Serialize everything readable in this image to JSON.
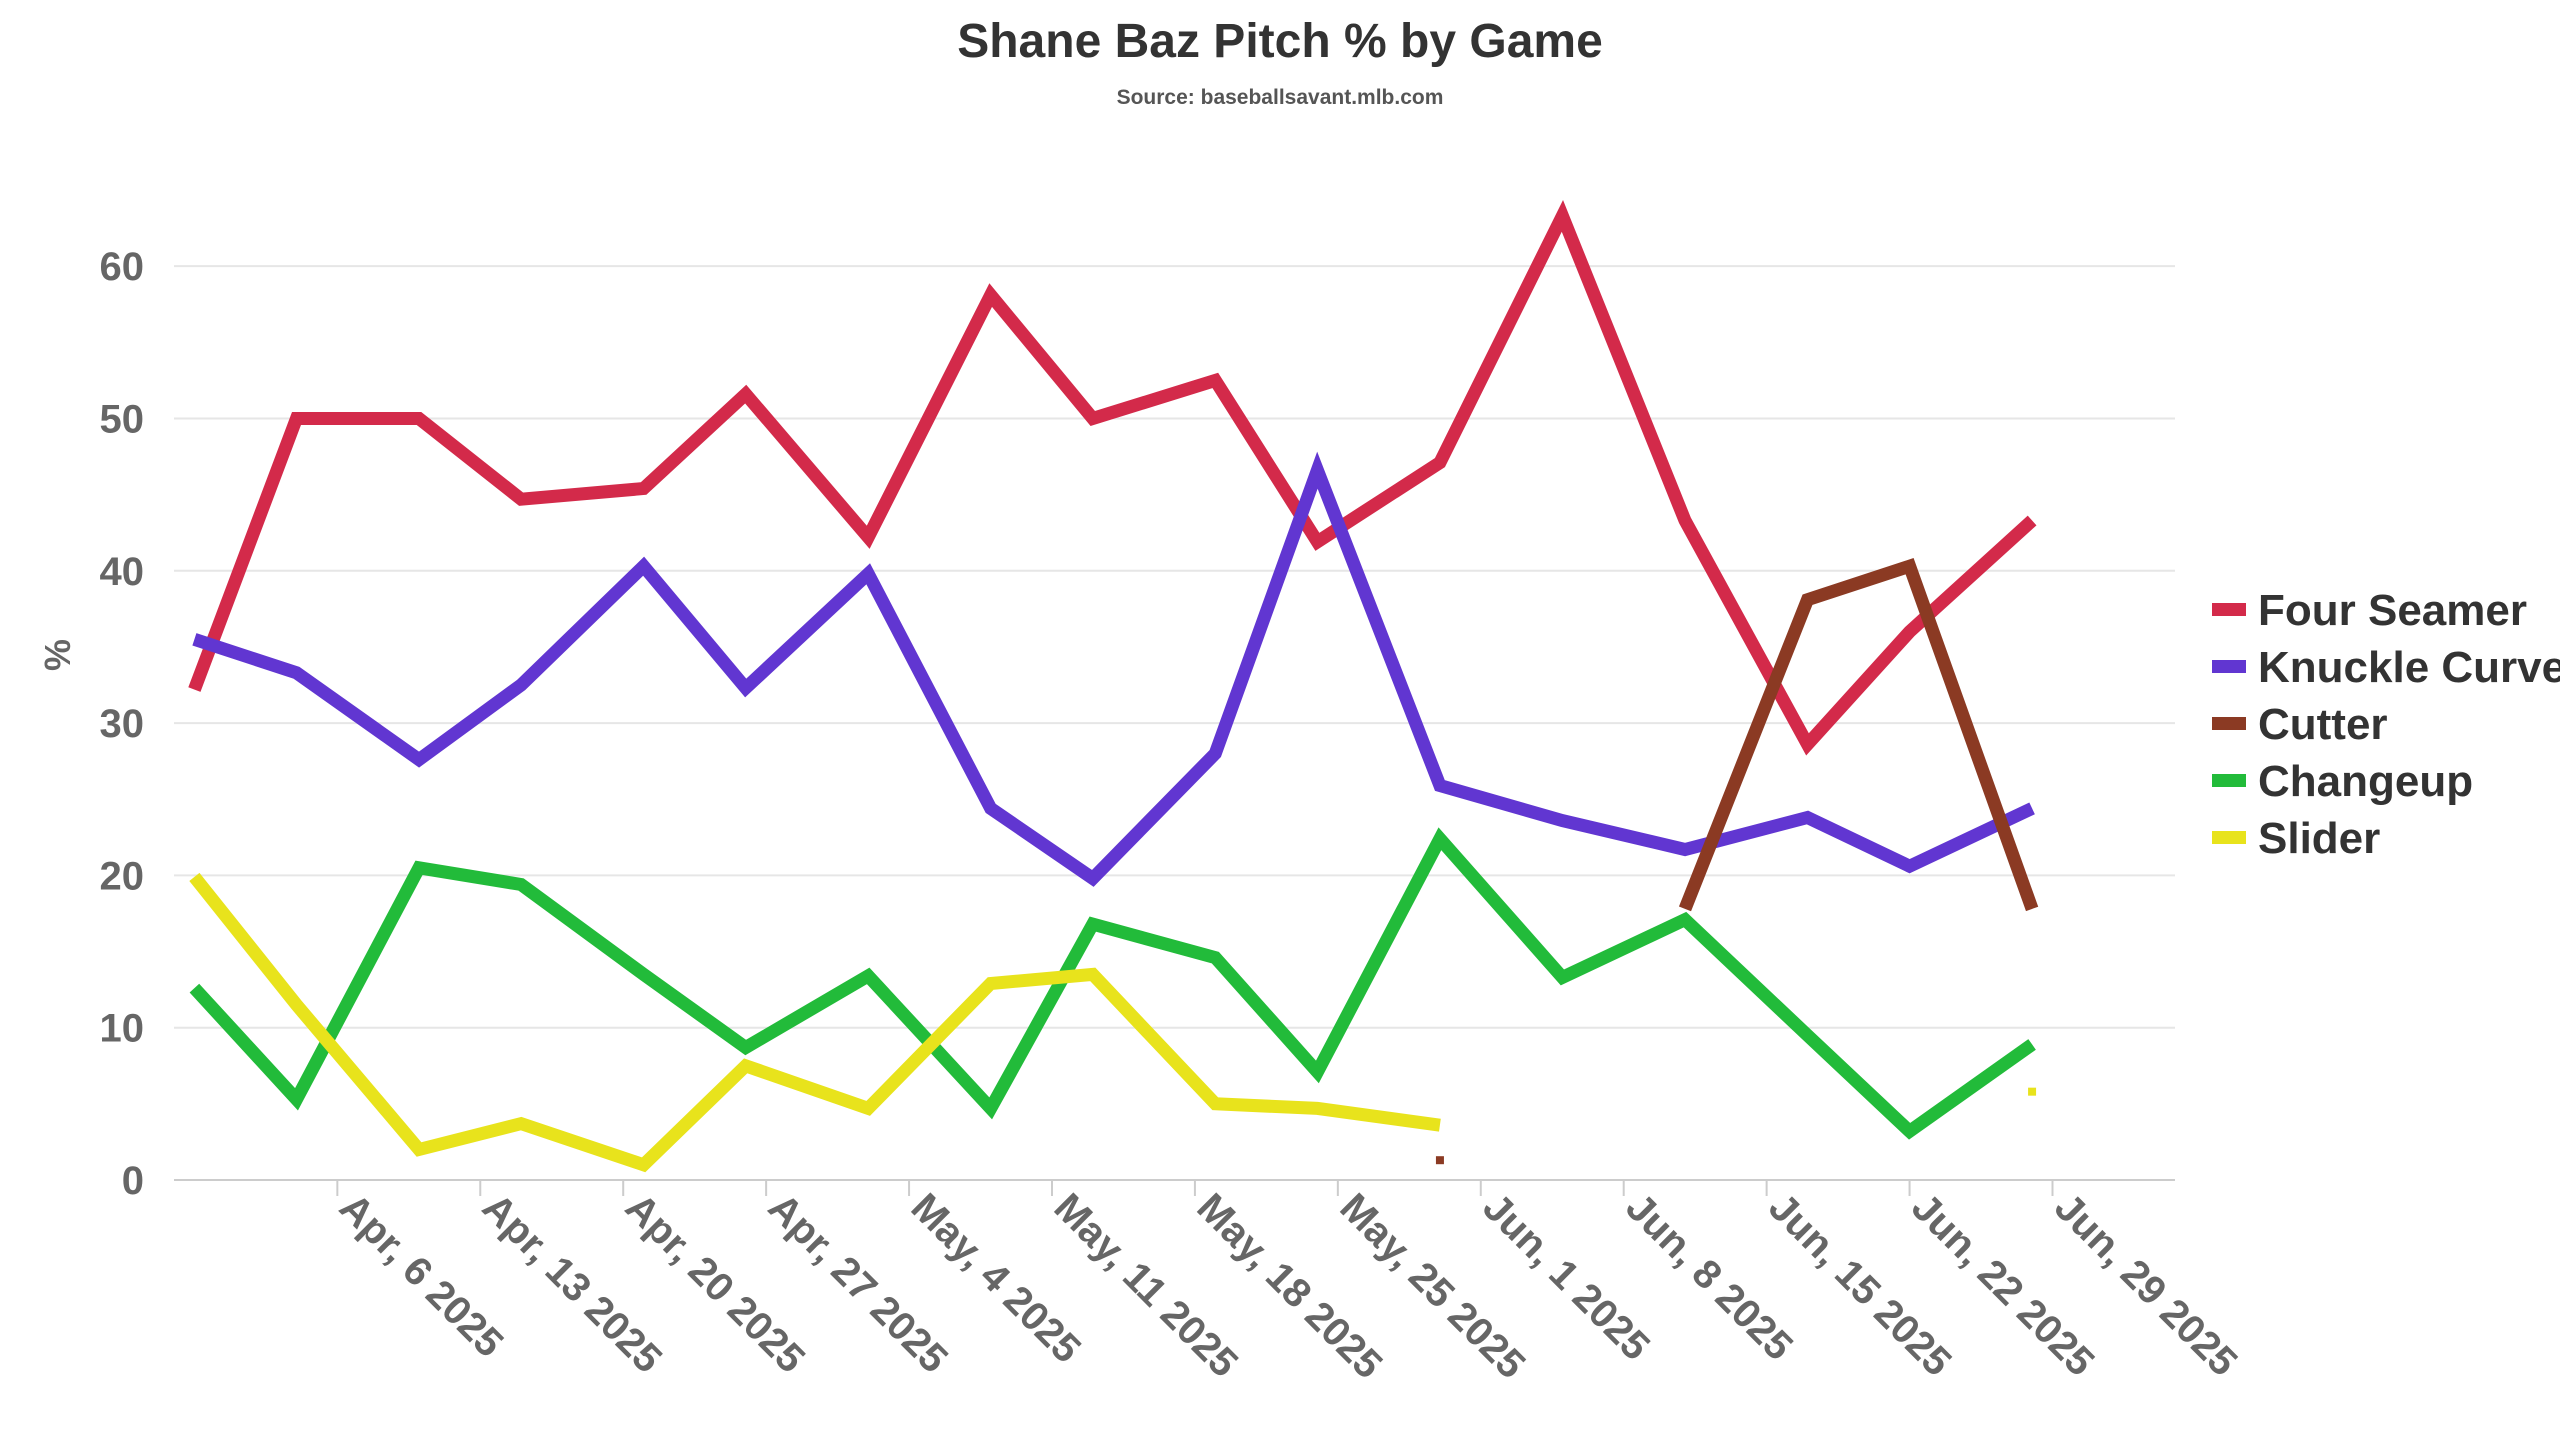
{
  "chart_data": {
    "type": "line",
    "title": "Shane Baz Pitch % by Game",
    "subtitle": "Source: baseballsavant.mlb.com",
    "ylabel": "%",
    "xlabel": "",
    "ylim": [
      0,
      65
    ],
    "yticks": [
      0,
      10,
      20,
      30,
      40,
      50,
      60
    ],
    "grid": true,
    "legend_position": "right",
    "x_tick_labels": [
      "Apr, 6 2025",
      "Apr, 13 2025",
      "Apr, 20 2025",
      "Apr, 27 2025",
      "May, 4 2025",
      "May, 11 2025",
      "May, 18 2025",
      "May, 25 2025",
      "Jun, 1 2025",
      "Jun, 8 2025",
      "Jun, 15 2025",
      "Jun, 22 2025",
      "Jun, 29 2025"
    ],
    "x_tick_dates": [
      "2025-04-06",
      "2025-04-13",
      "2025-04-20",
      "2025-04-27",
      "2025-05-04",
      "2025-05-11",
      "2025-05-18",
      "2025-05-25",
      "2025-06-01",
      "2025-06-08",
      "2025-06-15",
      "2025-06-22",
      "2025-06-29"
    ],
    "x_range": [
      "2025-03-29",
      "2025-07-05"
    ],
    "x": [
      "2025-03-30",
      "2025-04-04",
      "2025-04-10",
      "2025-04-15",
      "2025-04-21",
      "2025-04-26",
      "2025-05-02",
      "2025-05-08",
      "2025-05-13",
      "2025-05-19",
      "2025-05-24",
      "2025-05-30",
      "2025-06-05",
      "2025-06-11",
      "2025-06-17",
      "2025-06-22",
      "2025-06-28"
    ],
    "series": [
      {
        "name": "Four Seamer",
        "color": "#d32a4a",
        "values": [
          32.2,
          50.0,
          50.0,
          44.7,
          45.4,
          51.6,
          42.2,
          58.1,
          50.0,
          52.5,
          41.9,
          47.1,
          63.3,
          43.3,
          28.6,
          36.0,
          43.3
        ]
      },
      {
        "name": "Knuckle Curve",
        "color": "#6136d1",
        "values": [
          35.5,
          33.3,
          27.6,
          32.5,
          40.3,
          32.3,
          39.8,
          24.4,
          19.8,
          28.0,
          46.6,
          25.9,
          23.6,
          21.7,
          23.8,
          20.6,
          24.4
        ]
      },
      {
        "name": "Cutter",
        "color": "#8b3a23",
        "values": [
          null,
          null,
          null,
          null,
          null,
          null,
          null,
          null,
          null,
          null,
          null,
          1.3,
          null,
          17.8,
          38.1,
          40.3,
          17.8
        ]
      },
      {
        "name": "Changeup",
        "color": "#22bb3a",
        "values": [
          12.6,
          5.3,
          20.5,
          19.4,
          13.5,
          8.7,
          13.4,
          4.7,
          16.8,
          14.6,
          7.1,
          22.4,
          13.3,
          17.1,
          9.5,
          3.2,
          8.9
        ]
      },
      {
        "name": "Slider",
        "color": "#e8e31c",
        "values": [
          19.9,
          11.5,
          2.0,
          3.7,
          1.0,
          7.5,
          4.7,
          12.9,
          13.5,
          5.0,
          4.7,
          3.6,
          null,
          null,
          null,
          null,
          5.8
        ]
      }
    ]
  }
}
